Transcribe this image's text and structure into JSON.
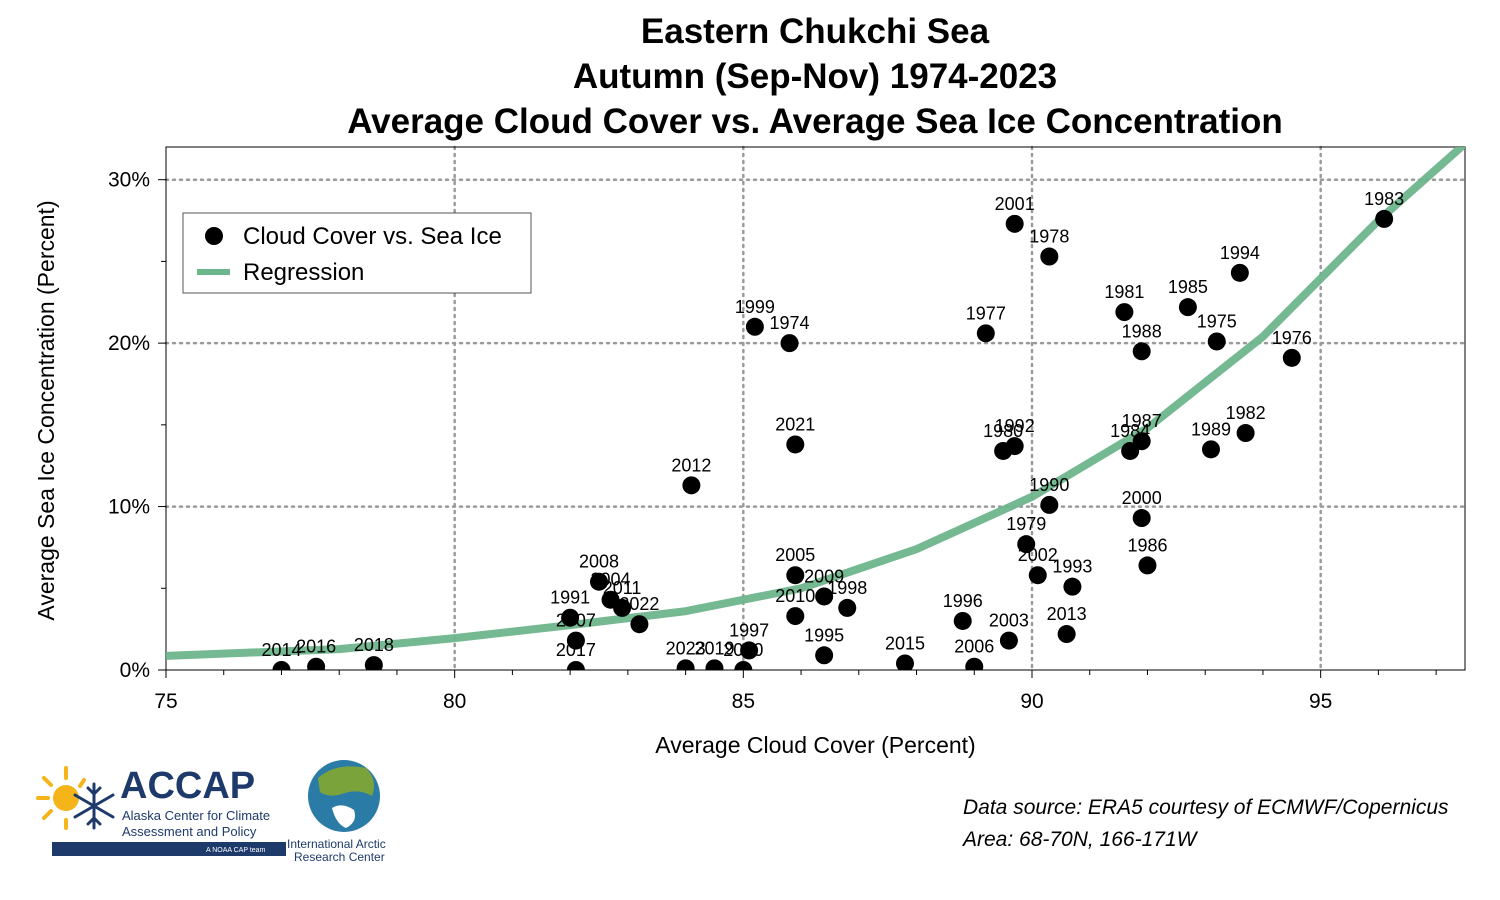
{
  "chart_data": {
    "type": "scatter",
    "title": [
      "Eastern Chukchi Sea",
      "Autumn (Sep-Nov) 1974-2023",
      "Average Cloud Cover vs. Average Sea Ice Concentration"
    ],
    "xlabel": "Average Cloud Cover (Percent)",
    "ylabel": "Average Sea Ice Concentration (Percent)",
    "xlim": [
      75,
      97.5
    ],
    "ylim": [
      0,
      32
    ],
    "xticks": [
      75,
      80,
      85,
      90,
      95
    ],
    "xtick_labels": [
      "75",
      "80",
      "85",
      "90",
      "95"
    ],
    "yticks": [
      0,
      10,
      20,
      30
    ],
    "ytick_labels": [
      "0%",
      "10%",
      "20%",
      "30%"
    ],
    "grid": true,
    "legend_placement": "top-left",
    "legend": [
      "Cloud Cover vs. Sea Ice",
      "Regression"
    ],
    "colors": {
      "points": "#000000",
      "regression": "#6db58b",
      "grid": "#9a9a9a"
    },
    "series": [
      {
        "name": "Cloud Cover vs. Sea Ice",
        "points": [
          {
            "year": "1974",
            "x": 85.8,
            "y": 20.0
          },
          {
            "year": "1975",
            "x": 93.2,
            "y": 20.1
          },
          {
            "year": "1976",
            "x": 94.5,
            "y": 19.1
          },
          {
            "year": "1977",
            "x": 89.2,
            "y": 20.6
          },
          {
            "year": "1978",
            "x": 90.3,
            "y": 25.3
          },
          {
            "year": "1979",
            "x": 89.9,
            "y": 7.7
          },
          {
            "year": "1980",
            "x": 89.5,
            "y": 13.4
          },
          {
            "year": "1981",
            "x": 91.6,
            "y": 21.9
          },
          {
            "year": "1982",
            "x": 93.7,
            "y": 14.5
          },
          {
            "year": "1983",
            "x": 96.1,
            "y": 27.6
          },
          {
            "year": "1984",
            "x": 91.7,
            "y": 13.4
          },
          {
            "year": "1985",
            "x": 92.7,
            "y": 22.2
          },
          {
            "year": "1986",
            "x": 92.0,
            "y": 6.4
          },
          {
            "year": "1987",
            "x": 91.9,
            "y": 14.0
          },
          {
            "year": "1988",
            "x": 91.9,
            "y": 19.5
          },
          {
            "year": "1989",
            "x": 93.1,
            "y": 13.5
          },
          {
            "year": "1990",
            "x": 90.3,
            "y": 10.1
          },
          {
            "year": "1991",
            "x": 82.0,
            "y": 3.2
          },
          {
            "year": "1992",
            "x": 89.7,
            "y": 13.7
          },
          {
            "year": "1993",
            "x": 90.7,
            "y": 5.1
          },
          {
            "year": "1994",
            "x": 93.6,
            "y": 24.3
          },
          {
            "year": "1995",
            "x": 86.4,
            "y": 0.9
          },
          {
            "year": "1996",
            "x": 88.8,
            "y": 3.0
          },
          {
            "year": "1997",
            "x": 85.1,
            "y": 1.2
          },
          {
            "year": "1998",
            "x": 86.8,
            "y": 3.8
          },
          {
            "year": "1999",
            "x": 85.2,
            "y": 21.0
          },
          {
            "year": "2000",
            "x": 91.9,
            "y": 9.3
          },
          {
            "year": "2001",
            "x": 89.7,
            "y": 27.3
          },
          {
            "year": "2002",
            "x": 90.1,
            "y": 5.8
          },
          {
            "year": "2003",
            "x": 89.6,
            "y": 1.8
          },
          {
            "year": "2004",
            "x": 82.7,
            "y": 4.3
          },
          {
            "year": "2005",
            "x": 85.9,
            "y": 5.8
          },
          {
            "year": "2006",
            "x": 89.0,
            "y": 0.2
          },
          {
            "year": "2007",
            "x": 82.1,
            "y": 1.8
          },
          {
            "year": "2008",
            "x": 82.5,
            "y": 5.4
          },
          {
            "year": "2009",
            "x": 86.4,
            "y": 4.5
          },
          {
            "year": "2010",
            "x": 85.9,
            "y": 3.3
          },
          {
            "year": "2011",
            "x": 82.9,
            "y": 3.8
          },
          {
            "year": "2012",
            "x": 84.1,
            "y": 11.3
          },
          {
            "year": "2013",
            "x": 90.6,
            "y": 2.2
          },
          {
            "year": "2014",
            "x": 77.0,
            "y": 0.0
          },
          {
            "year": "2015",
            "x": 87.8,
            "y": 0.4
          },
          {
            "year": "2016",
            "x": 77.6,
            "y": 0.2
          },
          {
            "year": "2017",
            "x": 82.1,
            "y": 0.0
          },
          {
            "year": "2018",
            "x": 78.6,
            "y": 0.3
          },
          {
            "year": "2019",
            "x": 84.5,
            "y": 0.1
          },
          {
            "year": "2020",
            "x": 85.0,
            "y": 0.0
          },
          {
            "year": "2021",
            "x": 85.9,
            "y": 13.8
          },
          {
            "year": "2022",
            "x": 83.2,
            "y": 2.8
          },
          {
            "year": "2023",
            "x": 84.0,
            "y": 0.1
          }
        ]
      },
      {
        "name": "Regression",
        "type": "exponential",
        "points": [
          {
            "x": 75.0,
            "y": 0.86
          },
          {
            "x": 78.0,
            "y": 1.28
          },
          {
            "x": 80.0,
            "y": 1.95
          },
          {
            "x": 82.0,
            "y": 2.75
          },
          {
            "x": 84.0,
            "y": 3.6
          },
          {
            "x": 86.0,
            "y": 5.0
          },
          {
            "x": 88.0,
            "y": 7.4
          },
          {
            "x": 90.0,
            "y": 10.6
          },
          {
            "x": 92.0,
            "y": 14.8
          },
          {
            "x": 94.0,
            "y": 20.4
          },
          {
            "x": 96.0,
            "y": 27.5
          },
          {
            "x": 97.5,
            "y": 32.2
          }
        ]
      }
    ]
  },
  "notes": {
    "source": "Data source: ERA5 courtesy of ECMWF/Copernicus",
    "area": "Area: 68-70N, 166-171W"
  },
  "logos": {
    "accap_name": "ACCAP",
    "accap_line1": "Alaska Center for Climate",
    "accap_line2": "Assessment and Policy",
    "accap_badge": "A NOAA CAP team",
    "iarc_line1": "International Arctic",
    "iarc_line2": "Research Center"
  }
}
